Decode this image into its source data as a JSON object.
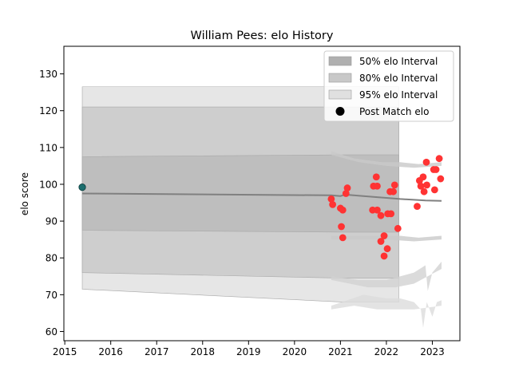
{
  "chart_data": {
    "type": "scatter",
    "title": "William Pees: elo History",
    "xlabel": "",
    "ylabel": "elo score",
    "xlim": [
      2014.98,
      2023.6
    ],
    "ylim": [
      57.5,
      137.5
    ],
    "xticks": [
      2015,
      2016,
      2017,
      2018,
      2019,
      2020,
      2021,
      2022,
      2023
    ],
    "yticks": [
      60,
      70,
      80,
      90,
      100,
      110,
      120,
      130
    ],
    "grid": false,
    "legend_placement": "top-right",
    "legend": [
      {
        "label": "50% elo Interval",
        "color": "#b0b0b0",
        "kind": "patch"
      },
      {
        "label": "80% elo Interval",
        "color": "#c8c8c8",
        "kind": "patch"
      },
      {
        "label": "95% elo Interval",
        "color": "#e0e0e0",
        "kind": "patch"
      },
      {
        "label": "Post Match elo",
        "color": "#000000",
        "kind": "marker"
      }
    ],
    "bands_main": {
      "x": [
        2015.38,
        2021.05,
        2022.27
      ],
      "p50": {
        "lo": [
          87.5,
          87.0,
          87.0
        ],
        "hi": [
          107.5,
          108.0,
          108.0
        ]
      },
      "p80": {
        "lo": [
          76.0,
          74.5,
          74.5
        ],
        "hi": [
          121.0,
          121.0,
          121.0
        ]
      },
      "p95": {
        "lo": [
          71.5,
          68.0,
          68.0
        ],
        "hi": [
          126.5,
          126.5,
          126.5
        ]
      }
    },
    "mean_line": {
      "x": [
        2015.38,
        2020.8,
        2021.0,
        2021.1,
        2021.5,
        2021.8,
        2022.0,
        2022.3,
        2022.6,
        2022.85,
        2023.2
      ],
      "y": [
        97.5,
        97.0,
        96.8,
        97.2,
        96.8,
        96.5,
        96.3,
        96.0,
        95.8,
        95.6,
        95.5
      ]
    },
    "first_point": {
      "x": 2015.38,
      "y": 99.2,
      "color": "#1c6e6e"
    },
    "series": [
      {
        "color": "#ff3333",
        "points": [
          [
            2020.8,
            96.0
          ],
          [
            2020.83,
            94.5
          ],
          [
            2021.0,
            93.5
          ],
          [
            2021.05,
            93.0
          ],
          [
            2021.02,
            88.5
          ],
          [
            2021.05,
            85.5
          ],
          [
            2021.12,
            97.5
          ],
          [
            2021.15,
            99.0
          ],
          [
            2021.7,
            93.0
          ],
          [
            2021.72,
            99.5
          ],
          [
            2021.78,
            102.0
          ],
          [
            2021.8,
            99.5
          ],
          [
            2021.8,
            93.0
          ],
          [
            2021.88,
            91.5
          ],
          [
            2021.88,
            84.5
          ],
          [
            2021.95,
            86.0
          ],
          [
            2021.95,
            80.5
          ],
          [
            2022.02,
            82.5
          ],
          [
            2022.03,
            92.0
          ],
          [
            2022.08,
            98.0
          ],
          [
            2022.1,
            92.0
          ],
          [
            2022.15,
            98.0
          ],
          [
            2022.18,
            99.8
          ],
          [
            2022.25,
            88.0
          ],
          [
            2022.67,
            94.0
          ],
          [
            2022.72,
            101.0
          ],
          [
            2022.75,
            99.5
          ],
          [
            2022.8,
            102.0
          ],
          [
            2022.82,
            98.0
          ],
          [
            2022.87,
            106.0
          ],
          [
            2022.88,
            99.8
          ],
          [
            2023.03,
            104.0
          ],
          [
            2023.05,
            98.5
          ],
          [
            2023.08,
            104.0
          ],
          [
            2023.15,
            107.0
          ],
          [
            2023.18,
            101.5
          ]
        ]
      }
    ]
  }
}
